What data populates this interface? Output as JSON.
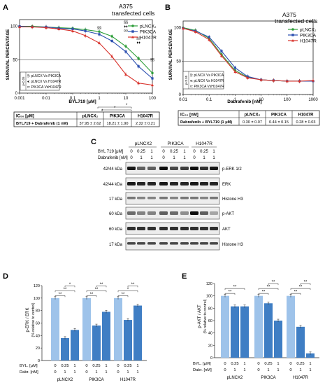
{
  "panelA": {
    "letter": "A",
    "title_line1": "A375",
    "title_line2": "transfected cells",
    "ylabel": "SURVIVAL PERCENTAGE",
    "xlabel": "BYL719 [μM]",
    "yticks": [
      "0",
      "50",
      "100"
    ],
    "xticks": [
      "0.001",
      "0.01",
      "0.1",
      "1",
      "10",
      "100"
    ],
    "legend": [
      "pLNCX₂",
      "PIK3CA",
      "H1047R"
    ],
    "stats_legend": [
      "§: pLNCX Vs PIK3CA",
      "♦: pLNCX Vs H1047R",
      "¤: PIK3CA VsH1047R"
    ],
    "stats_header": "p<0.05",
    "table_header": [
      "IC₅₀ [μM]",
      "pLNCX₂",
      "PIK3CA",
      "H1047R"
    ],
    "table_row": [
      "BYL719 + Dabrafenib (1 nM)",
      "37.95 ± 2.62",
      "18.21 ± 1.90",
      "2.32 ± 0.21"
    ],
    "sig_marks": [
      {
        "x": 1,
        "text": "§§"
      },
      {
        "x": 10,
        "text": "§§"
      },
      {
        "x": 10,
        "text": "♦♦"
      },
      {
        "x": 10,
        "text": "¤¤"
      },
      {
        "x": 30,
        "text": "§§"
      },
      {
        "x": 30,
        "text": "♦♦"
      },
      {
        "x": 100,
        "text": "§§"
      }
    ]
  },
  "panelB": {
    "letter": "B",
    "title_line1": "A375",
    "title_line2": "transfected cells",
    "ylabel": "SURVIVAL PERCENTAGE",
    "xlabel": "Dabrafenib  [nM]",
    "yticks": [
      "0",
      "50",
      "100"
    ],
    "xticks": [
      "0.01",
      "0.1",
      "1",
      "10",
      "100",
      "1000"
    ],
    "legend": [
      "pLNCX₂",
      "PIK3CA",
      "H1047R"
    ],
    "stats_legend": [
      "§: pLNCX Vs PIK3CA",
      "♦: pLNCX Vs H1047R",
      "¤: PIK3CA VsH1047R"
    ],
    "stats_header": "p<0.05",
    "table_header": [
      "IC₅₀ [nM]",
      "pLNCX₂",
      "PIK3CA",
      "H1047R"
    ],
    "table_row": [
      "Dabrafenib + BYL719 (1 μM)",
      "0.30 ± 0.07",
      "0.44 ± 0.15",
      "0.28 ± 0.03"
    ]
  },
  "panelC": {
    "letter": "C",
    "groups": [
      "pLNCX2",
      "PIK3CA",
      "H1047R"
    ],
    "row1_label": "BYL 719 [μM]",
    "row1_vals": [
      "0",
      "0.25",
      "1",
      "0",
      "0.25",
      "1",
      "0",
      "0.25",
      "1"
    ],
    "row2_label": "Dabrafenib [nM]",
    "row2_vals": [
      "0",
      "1",
      "1",
      "0",
      "1",
      "1",
      "0",
      "1",
      "1"
    ],
    "blots": [
      {
        "kda": "42/44 kDa",
        "name": "p-ERK 1/2"
      },
      {
        "kda": "42/44 kDa",
        "name": "ERK"
      },
      {
        "kda": "17 kDa",
        "name": "Histone H3"
      },
      {
        "kda": "60 kDa",
        "name": "p-AKT"
      },
      {
        "kda": "60 kDa",
        "name": "AKT"
      },
      {
        "kda": "17 kDa",
        "name": "Histone H3"
      }
    ]
  },
  "panelD": {
    "letter": "D",
    "ylabel": "p-ERK / ERK",
    "ylabel2": "(% relative to control)",
    "yticks": [
      "0",
      "20",
      "40",
      "60",
      "80",
      "100",
      "120"
    ],
    "row1_label": "BYL. [μM]",
    "row1_vals": [
      "0",
      "0.25",
      "1",
      "0",
      "0.25",
      "1",
      "0",
      "0.25",
      "1"
    ],
    "row2_label": "Dabr. [nM]",
    "row2_vals": [
      "0",
      "1",
      "1",
      "0",
      "1",
      "1",
      "0",
      "1",
      "1"
    ],
    "groups": [
      "pLNCX2",
      "PIK3CA",
      "H1047R"
    ]
  },
  "panelE": {
    "letter": "E",
    "ylabel": "p-AKT / AKT",
    "ylabel2": "(% relative to control)",
    "yticks": [
      "0",
      "20",
      "40",
      "60",
      "80",
      "100",
      "120"
    ],
    "row1_label": "BYL. [μM]",
    "row1_vals": [
      "0",
      "0.25",
      "1",
      "0",
      "0.25",
      "1",
      "0",
      "0.25",
      "1"
    ],
    "row2_label": "Dabr. [nM]",
    "row2_vals": [
      "0",
      "1",
      "1",
      "0",
      "1",
      "1",
      "0",
      "1",
      "1"
    ],
    "groups": [
      "pLNCX2",
      "PIK3CA",
      "H1047R"
    ]
  },
  "colors": {
    "green": "#2e9e3a",
    "blue": "#2b4fb0",
    "red": "#d8312a",
    "bar_light": "#9ec3ea",
    "bar_dark": "#3f7ec4",
    "grey": "#888888"
  },
  "chart_data": [
    {
      "type": "line",
      "panel": "A",
      "xscale": "log",
      "xlabel": "BYL719 [μM]",
      "ylabel": "SURVIVAL PERCENTAGE",
      "ylim": [
        0,
        110
      ],
      "xlim": [
        0.001,
        100
      ],
      "x": [
        0.001,
        0.003,
        0.01,
        0.03,
        0.1,
        0.3,
        1,
        3,
        10,
        30,
        100
      ],
      "series": [
        {
          "name": "pLNCX₂",
          "color": "green",
          "values": [
            100,
            100,
            99,
            98,
            97,
            95,
            92,
            85,
            70,
            52,
            30
          ]
        },
        {
          "name": "PIK3CA",
          "color": "blue",
          "values": [
            100,
            99,
            99,
            97,
            96,
            93,
            88,
            78,
            62,
            40,
            22
          ]
        },
        {
          "name": "H1047R",
          "color": "red",
          "values": [
            99,
            99,
            98,
            96,
            93,
            86,
            75,
            55,
            28,
            15,
            12
          ]
        }
      ]
    },
    {
      "type": "line",
      "panel": "B",
      "xscale": "log",
      "xlabel": "Dabrafenib  [nM]",
      "ylabel": "SURVIVAL PERCENTAGE",
      "ylim": [
        0,
        110
      ],
      "xlim": [
        0.01,
        1000
      ],
      "x": [
        0.01,
        0.03,
        0.1,
        0.3,
        1,
        3,
        10,
        30,
        100,
        300,
        1000
      ],
      "series": [
        {
          "name": "pLNCX₂",
          "color": "green",
          "values": [
            100,
            96,
            84,
            60,
            36,
            26,
            22,
            21,
            20,
            20,
            20
          ]
        },
        {
          "name": "PIK3CA",
          "color": "blue",
          "values": [
            99,
            95,
            86,
            65,
            40,
            27,
            22,
            21,
            20,
            20,
            20
          ]
        },
        {
          "name": "H1047R",
          "color": "red",
          "values": [
            99,
            94,
            82,
            58,
            34,
            25,
            22,
            21,
            20,
            20,
            21
          ]
        }
      ]
    },
    {
      "type": "bar",
      "panel": "D",
      "ylabel": "p-ERK / ERK",
      "ylim": [
        0,
        120
      ],
      "categories": [
        "pLNCX2",
        "PIK3CA",
        "H1047R"
      ],
      "values": [
        [
          100,
          36,
          49
        ],
        [
          100,
          56,
          78
        ],
        [
          100,
          65,
          88
        ]
      ]
    },
    {
      "type": "bar",
      "panel": "E",
      "ylabel": "p-AKT / AKT",
      "ylim": [
        0,
        120
      ],
      "categories": [
        "pLNCX2",
        "PIK3CA",
        "H1047R"
      ],
      "values": [
        [
          100,
          83,
          83
        ],
        [
          100,
          88,
          60
        ],
        [
          100,
          50,
          7
        ]
      ]
    }
  ]
}
